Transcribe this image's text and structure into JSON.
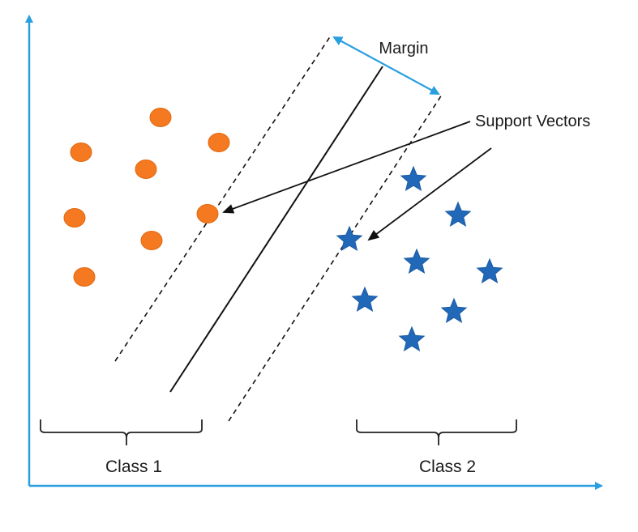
{
  "labels": {
    "margin": "Margin",
    "support_vectors": "Support Vectors",
    "class1": "Class 1",
    "class2": "Class 2"
  },
  "colors": {
    "axis": "#2a9fdf",
    "class1": "#f47920",
    "class2": "#2168b8",
    "line": "#111111",
    "margin_arrow": "#2a9fdf"
  },
  "icons": {
    "class1_marker": "circle-icon",
    "class2_marker": "star-icon"
  }
}
